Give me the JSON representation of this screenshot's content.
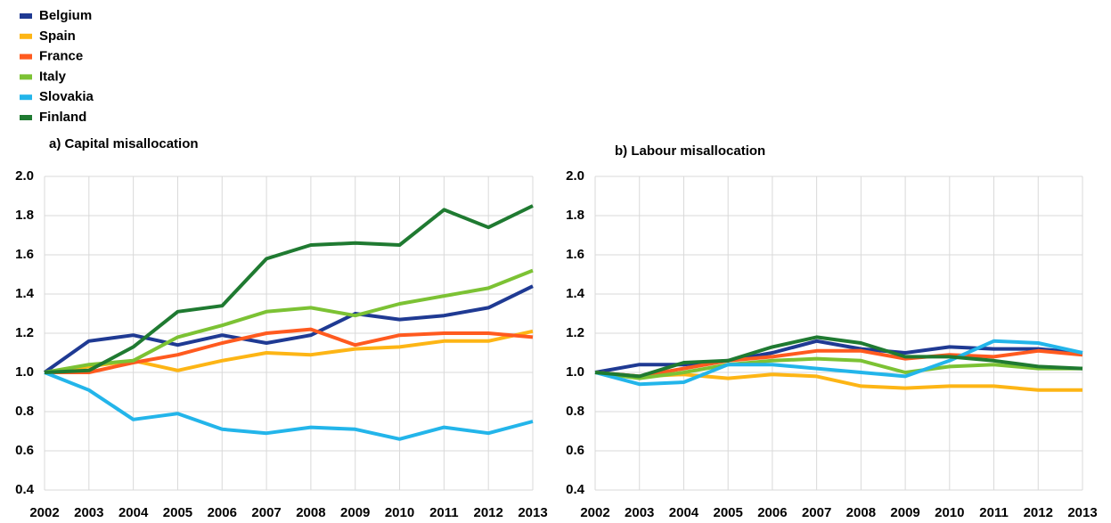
{
  "chart_data": [
    {
      "type": "line",
      "title": "a) Capital misallocation",
      "categories": [
        "2002",
        "2003",
        "2004",
        "2005",
        "2006",
        "2007",
        "2008",
        "2009",
        "2010",
        "2011",
        "2012",
        "2013"
      ],
      "ylim": [
        0.4,
        2.0
      ],
      "yticks": [
        0.4,
        0.6,
        0.8,
        {
          "value": 1.0,
          "label": "1.0"
        },
        1.2,
        1.4,
        1.6,
        1.8,
        {
          "value": 2.0,
          "label": "2.0"
        }
      ],
      "grid": true,
      "series": [
        {
          "name": "Belgium",
          "color": "#1f3a93",
          "values": [
            1.0,
            1.16,
            1.19,
            1.14,
            1.19,
            1.15,
            1.19,
            1.3,
            1.27,
            1.29,
            1.33,
            1.44
          ]
        },
        {
          "name": "Spain",
          "color": "#fdb515",
          "values": [
            1.0,
            1.03,
            1.06,
            1.01,
            1.06,
            1.1,
            1.09,
            1.12,
            1.13,
            1.16,
            1.16,
            1.21
          ]
        },
        {
          "name": "France",
          "color": "#ff5a1f",
          "values": [
            1.0,
            1.0,
            1.05,
            1.09,
            1.15,
            1.2,
            1.22,
            1.14,
            1.19,
            1.2,
            1.2,
            1.18
          ]
        },
        {
          "name": "Italy",
          "color": "#7cc234",
          "values": [
            1.0,
            1.04,
            1.06,
            1.18,
            1.24,
            1.31,
            1.33,
            1.29,
            1.35,
            1.39,
            1.43,
            1.52
          ]
        },
        {
          "name": "Slovakia",
          "color": "#23b5ea",
          "values": [
            1.0,
            0.91,
            0.76,
            0.79,
            0.71,
            0.69,
            0.72,
            0.71,
            0.66,
            0.72,
            0.69,
            0.75
          ]
        },
        {
          "name": "Finland",
          "color": "#1f7a31",
          "values": [
            1.0,
            1.01,
            1.13,
            1.31,
            1.34,
            1.58,
            1.65,
            1.66,
            1.65,
            1.83,
            1.74,
            1.85
          ]
        }
      ]
    },
    {
      "type": "line",
      "title": "b) Labour misallocation",
      "categories": [
        "2002",
        "2003",
        "2004",
        "2005",
        "2006",
        "2007",
        "2008",
        "2009",
        "2010",
        "2011",
        "2012",
        "2013"
      ],
      "ylim": [
        0.4,
        2.0
      ],
      "yticks": [
        0.4,
        0.6,
        0.8,
        {
          "value": 1.0,
          "label": "1.0"
        },
        1.2,
        1.4,
        1.6,
        1.8,
        {
          "value": 2.0,
          "label": "2.0"
        }
      ],
      "grid": true,
      "series": [
        {
          "name": "Belgium",
          "color": "#1f3a93",
          "values": [
            1.0,
            1.04,
            1.04,
            1.06,
            1.1,
            1.16,
            1.12,
            1.1,
            1.13,
            1.12,
            1.12,
            1.1
          ]
        },
        {
          "name": "Spain",
          "color": "#fdb515",
          "values": [
            1.0,
            0.98,
            0.99,
            0.97,
            0.99,
            0.98,
            0.93,
            0.92,
            0.93,
            0.93,
            0.91,
            0.91
          ]
        },
        {
          "name": "France",
          "color": "#ff5a1f",
          "values": [
            1.0,
            0.98,
            1.02,
            1.06,
            1.08,
            1.11,
            1.11,
            1.07,
            1.09,
            1.08,
            1.11,
            1.09
          ]
        },
        {
          "name": "Italy",
          "color": "#7cc234",
          "values": [
            1.0,
            0.97,
            1.0,
            1.04,
            1.06,
            1.07,
            1.06,
            1.0,
            1.03,
            1.04,
            1.02,
            1.02
          ]
        },
        {
          "name": "Slovakia",
          "color": "#23b5ea",
          "values": [
            1.0,
            0.94,
            0.95,
            1.04,
            1.04,
            1.02,
            1.0,
            0.98,
            1.06,
            1.16,
            1.15,
            1.1
          ]
        },
        {
          "name": "Finland",
          "color": "#1f7a31",
          "values": [
            1.0,
            0.98,
            1.05,
            1.06,
            1.13,
            1.18,
            1.15,
            1.08,
            1.08,
            1.06,
            1.03,
            1.02
          ]
        }
      ]
    }
  ]
}
